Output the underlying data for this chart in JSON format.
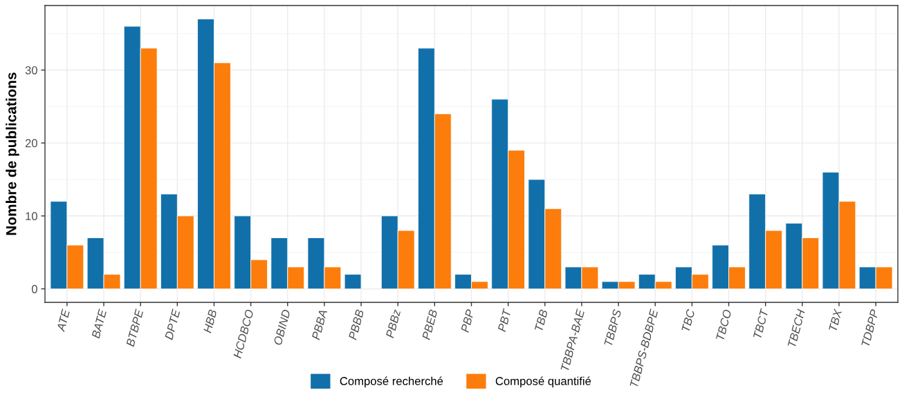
{
  "chart_data": {
    "type": "bar",
    "ylabel": "Nombre de publications",
    "categories": [
      "ATE",
      "BATE",
      "BTBPE",
      "DPTE",
      "HBB",
      "HCDBCO",
      "OBIND",
      "PBBA",
      "PBBB",
      "PBBz",
      "PBEB",
      "PBP",
      "PBT",
      "TBB",
      "TBBPA-BAE",
      "TBBPS",
      "TBBPS-BDBPE",
      "TBC",
      "TBCO",
      "TBCT",
      "TBECH",
      "TBX",
      "TDBPP"
    ],
    "series": [
      {
        "name": "Composé recherché",
        "color": "#1170aa",
        "values": [
          12,
          7,
          36,
          13,
          37,
          10,
          7,
          7,
          2,
          10,
          33,
          2,
          26,
          15,
          3,
          1,
          2,
          3,
          6,
          13,
          9,
          16,
          3
        ]
      },
      {
        "name": "Composé quantifié",
        "color": "#fc7d0b",
        "values": [
          6,
          2,
          33,
          10,
          31,
          4,
          3,
          3,
          0,
          8,
          24,
          1,
          19,
          11,
          3,
          1,
          1,
          2,
          3,
          8,
          7,
          12,
          3
        ]
      }
    ],
    "ylim": [
      -1.85,
      38.85
    ],
    "yticks": [
      0,
      10,
      20,
      30
    ],
    "grid": true,
    "legend": "bottom"
  }
}
